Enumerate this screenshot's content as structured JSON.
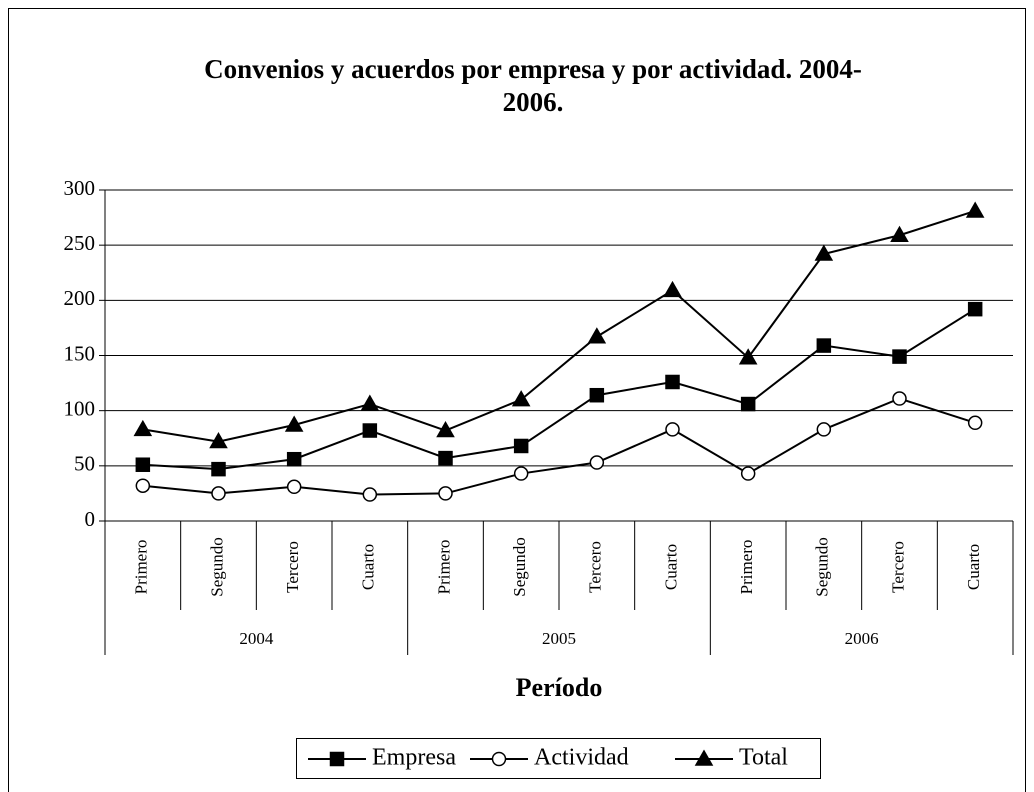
{
  "chart_data": {
    "type": "line",
    "title": "Convenios y acuerdos por empresa y por actividad. 2004-2006.",
    "x_label": "Período",
    "categories": [
      "Primero",
      "Segundo",
      "Tercero",
      "Cuarto",
      "Primero",
      "Segundo",
      "Tercero",
      "Cuarto",
      "Primero",
      "Segundo",
      "Tercero",
      "Cuarto"
    ],
    "category_groups": [
      "2004",
      "2005",
      "2006"
    ],
    "series": [
      {
        "name": "Empresa",
        "color": "#000000",
        "marker": "square",
        "values": [
          51,
          47,
          56,
          82,
          57,
          68,
          114,
          126,
          106,
          159,
          149,
          192
        ]
      },
      {
        "name": "Actividad",
        "color": "#000000",
        "marker": "circle",
        "values": [
          32,
          25,
          31,
          24,
          25,
          43,
          53,
          83,
          43,
          83,
          111,
          89
        ]
      },
      {
        "name": "Total",
        "color": "#000000",
        "marker": "triangle",
        "values": [
          83,
          72,
          87,
          106,
          82,
          110,
          167,
          209,
          148,
          242,
          259,
          281
        ]
      }
    ],
    "ylim": [
      0,
      300
    ],
    "yticks": [
      0,
      50,
      100,
      150,
      200,
      250,
      300
    ],
    "grid": true,
    "legend": "bottom"
  }
}
